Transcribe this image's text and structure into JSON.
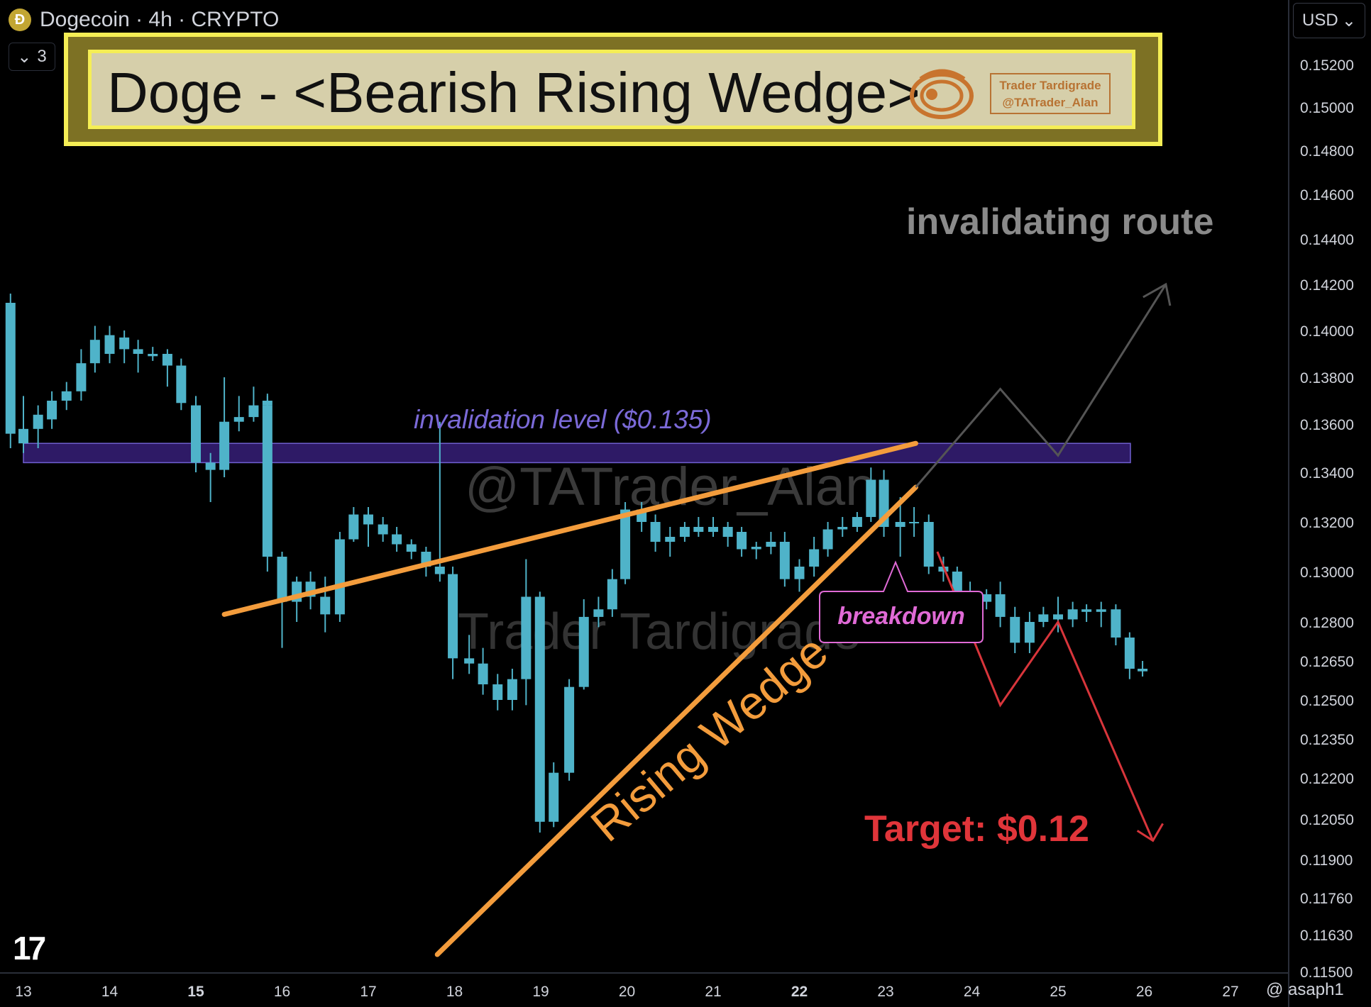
{
  "header": {
    "title": "Dogecoin · 4h · CRYPTO",
    "collapse_count": "3",
    "currency": "USD"
  },
  "banner": {
    "title": "Doge - <Bearish Rising Wedge>",
    "logo_line1": "Trader Tardigrade",
    "logo_line2": "@TATrader_Alan"
  },
  "footer": {
    "note": "@ asaph1"
  },
  "colors": {
    "bull": "#4fb3c9",
    "bear": "#4fb3c9",
    "wedge": "#f39c3c",
    "zone": "#2e1a66",
    "zone_border": "#6f5fd0",
    "invalid_path": "#555555",
    "target_path": "#d8353b",
    "breakdown": "#e06ad6"
  },
  "chart_data": {
    "type": "candlestick",
    "title": "Dogecoin · 4h · CRYPTO",
    "x_ticks": [
      {
        "t": 0,
        "label": "13",
        "bold": false
      },
      {
        "t": 1,
        "label": "14",
        "bold": false
      },
      {
        "t": 2,
        "label": "15",
        "bold": true
      },
      {
        "t": 3,
        "label": "16",
        "bold": false
      },
      {
        "t": 4,
        "label": "17",
        "bold": false
      },
      {
        "t": 5,
        "label": "18",
        "bold": false
      },
      {
        "t": 6,
        "label": "19",
        "bold": false
      },
      {
        "t": 7,
        "label": "20",
        "bold": false
      },
      {
        "t": 8,
        "label": "21",
        "bold": false
      },
      {
        "t": 9,
        "label": "22",
        "bold": true
      },
      {
        "t": 10,
        "label": "23",
        "bold": false
      },
      {
        "t": 11,
        "label": "24",
        "bold": false
      },
      {
        "t": 12,
        "label": "25",
        "bold": false
      },
      {
        "t": 13,
        "label": "26",
        "bold": false
      },
      {
        "t": 14,
        "label": "27",
        "bold": false
      }
    ],
    "y_ticks": [
      "0.15200",
      "0.15000",
      "0.14800",
      "0.14600",
      "0.14400",
      "0.14200",
      "0.14000",
      "0.13800",
      "0.13600",
      "0.13400",
      "0.13200",
      "0.13000",
      "0.12800",
      "0.12650",
      "0.12500",
      "0.12350",
      "0.12200",
      "0.12050",
      "0.11900",
      "0.11760",
      "0.11630",
      "0.11500"
    ],
    "annotations": {
      "invalidation_label": "invalidation level ($0.135)",
      "invalidating_route": "invalidating route",
      "breakdown": "breakdown",
      "target": "Target: $0.12",
      "pattern": "Rising Wedge",
      "watermark1": "@TATrader_Alan",
      "watermark2": "Trader Tardigrade"
    },
    "invalidation_zone": [
      0.1344,
      0.1352
    ],
    "wedge_upper": [
      [
        2.33,
        0.1283
      ],
      [
        10.35,
        0.1352
      ]
    ],
    "wedge_lower": [
      [
        4.8,
        0.1156
      ],
      [
        10.35,
        0.1334
      ]
    ],
    "invalid_path": [
      [
        10.35,
        0.1334
      ],
      [
        11.33,
        0.1375
      ],
      [
        12.0,
        0.1347
      ],
      [
        13.25,
        0.142
      ]
    ],
    "target_path": [
      [
        10.6,
        0.1308
      ],
      [
        11.33,
        0.1248
      ],
      [
        12.0,
        0.128
      ],
      [
        13.1,
        0.1197
      ]
    ],
    "candles": [
      {
        "t": -0.15,
        "o": 0.1356,
        "h": 0.1416,
        "l": 0.135,
        "c": 0.1412
      },
      {
        "t": 0.0,
        "o": 0.1352,
        "h": 0.1372,
        "l": 0.1348,
        "c": 0.1358
      },
      {
        "t": 0.17,
        "o": 0.1358,
        "h": 0.1368,
        "l": 0.135,
        "c": 0.1364
      },
      {
        "t": 0.33,
        "o": 0.1362,
        "h": 0.1374,
        "l": 0.1358,
        "c": 0.137
      },
      {
        "t": 0.5,
        "o": 0.137,
        "h": 0.1378,
        "l": 0.1366,
        "c": 0.1374
      },
      {
        "t": 0.67,
        "o": 0.1374,
        "h": 0.1392,
        "l": 0.137,
        "c": 0.1386
      },
      {
        "t": 0.83,
        "o": 0.1386,
        "h": 0.1402,
        "l": 0.1382,
        "c": 0.1396
      },
      {
        "t": 1.0,
        "o": 0.139,
        "h": 0.1402,
        "l": 0.1386,
        "c": 0.1398
      },
      {
        "t": 1.17,
        "o": 0.1397,
        "h": 0.14,
        "l": 0.1386,
        "c": 0.1392
      },
      {
        "t": 1.33,
        "o": 0.1392,
        "h": 0.1396,
        "l": 0.1382,
        "c": 0.139
      },
      {
        "t": 1.5,
        "o": 0.139,
        "h": 0.1393,
        "l": 0.1387,
        "c": 0.1389
      },
      {
        "t": 1.67,
        "o": 0.139,
        "h": 0.1392,
        "l": 0.1376,
        "c": 0.1385
      },
      {
        "t": 1.83,
        "o": 0.1385,
        "h": 0.1388,
        "l": 0.1366,
        "c": 0.1369
      },
      {
        "t": 2.0,
        "o": 0.1368,
        "h": 0.1372,
        "l": 0.1352,
        "c": 0.1355
      },
      {
        "t": 2.0,
        "o": 0.1355,
        "h": 0.1362,
        "l": 0.134,
        "c": 0.1344
      },
      {
        "t": 2.17,
        "o": 0.1344,
        "h": 0.1348,
        "l": 0.1328,
        "c": 0.1341
      },
      {
        "t": 2.33,
        "o": 0.1341,
        "h": 0.138,
        "l": 0.1338,
        "c": 0.1361
      },
      {
        "t": 2.5,
        "o": 0.1361,
        "h": 0.1372,
        "l": 0.1357,
        "c": 0.1363
      },
      {
        "t": 2.67,
        "o": 0.1363,
        "h": 0.1376,
        "l": 0.1361,
        "c": 0.1368
      },
      {
        "t": 2.83,
        "o": 0.1368,
        "h": 0.1373,
        "l": 0.1366,
        "c": 0.137
      },
      {
        "t": 2.83,
        "o": 0.1368,
        "h": 0.1372,
        "l": 0.13,
        "c": 0.1306
      },
      {
        "t": 3.0,
        "o": 0.1306,
        "h": 0.1308,
        "l": 0.127,
        "c": 0.1288
      },
      {
        "t": 3.17,
        "o": 0.1288,
        "h": 0.1298,
        "l": 0.128,
        "c": 0.1296
      },
      {
        "t": 3.33,
        "o": 0.1296,
        "h": 0.13,
        "l": 0.1285,
        "c": 0.129
      },
      {
        "t": 3.5,
        "o": 0.129,
        "h": 0.1298,
        "l": 0.1276,
        "c": 0.1283
      },
      {
        "t": 3.67,
        "o": 0.1283,
        "h": 0.1316,
        "l": 0.128,
        "c": 0.1313
      },
      {
        "t": 3.83,
        "o": 0.1313,
        "h": 0.1326,
        "l": 0.1312,
        "c": 0.1323
      },
      {
        "t": 4.0,
        "o": 0.1323,
        "h": 0.1326,
        "l": 0.131,
        "c": 0.1319
      },
      {
        "t": 4.17,
        "o": 0.1319,
        "h": 0.1322,
        "l": 0.1312,
        "c": 0.1315
      },
      {
        "t": 4.33,
        "o": 0.1315,
        "h": 0.1318,
        "l": 0.1308,
        "c": 0.1311
      },
      {
        "t": 4.5,
        "o": 0.1311,
        "h": 0.1313,
        "l": 0.1305,
        "c": 0.1308
      },
      {
        "t": 4.67,
        "o": 0.1308,
        "h": 0.131,
        "l": 0.1298,
        "c": 0.1302
      },
      {
        "t": 4.83,
        "o": 0.1302,
        "h": 0.1361,
        "l": 0.1296,
        "c": 0.1299
      },
      {
        "t": 4.98,
        "o": 0.1299,
        "h": 0.1302,
        "l": 0.1258,
        "c": 0.1266
      },
      {
        "t": 5.17,
        "o": 0.1266,
        "h": 0.1275,
        "l": 0.126,
        "c": 0.1264
      },
      {
        "t": 5.33,
        "o": 0.1264,
        "h": 0.127,
        "l": 0.1252,
        "c": 0.1256
      },
      {
        "t": 5.5,
        "o": 0.1256,
        "h": 0.126,
        "l": 0.1246,
        "c": 0.125
      },
      {
        "t": 5.67,
        "o": 0.125,
        "h": 0.1262,
        "l": 0.1246,
        "c": 0.1258
      },
      {
        "t": 5.83,
        "o": 0.1258,
        "h": 0.1305,
        "l": 0.1248,
        "c": 0.129
      },
      {
        "t": 5.99,
        "o": 0.129,
        "h": 0.1292,
        "l": 0.12,
        "c": 0.1204
      },
      {
        "t": 6.15,
        "o": 0.1204,
        "h": 0.1226,
        "l": 0.1202,
        "c": 0.1222
      },
      {
        "t": 6.33,
        "o": 0.1222,
        "h": 0.1258,
        "l": 0.1219,
        "c": 0.1255
      },
      {
        "t": 6.5,
        "o": 0.1255,
        "h": 0.1289,
        "l": 0.1254,
        "c": 0.1282
      },
      {
        "t": 6.67,
        "o": 0.1282,
        "h": 0.129,
        "l": 0.1278,
        "c": 0.1285
      },
      {
        "t": 6.83,
        "o": 0.1285,
        "h": 0.1301,
        "l": 0.1282,
        "c": 0.1297
      },
      {
        "t": 6.98,
        "o": 0.1297,
        "h": 0.1328,
        "l": 0.1295,
        "c": 0.1325
      },
      {
        "t": 7.17,
        "o": 0.1325,
        "h": 0.1328,
        "l": 0.1316,
        "c": 0.132
      },
      {
        "t": 7.33,
        "o": 0.132,
        "h": 0.1323,
        "l": 0.1308,
        "c": 0.1312
      },
      {
        "t": 7.5,
        "o": 0.1312,
        "h": 0.1318,
        "l": 0.1306,
        "c": 0.1314
      },
      {
        "t": 7.67,
        "o": 0.1314,
        "h": 0.132,
        "l": 0.1312,
        "c": 0.1318
      },
      {
        "t": 7.83,
        "o": 0.1318,
        "h": 0.1322,
        "l": 0.1314,
        "c": 0.1316
      },
      {
        "t": 8.0,
        "o": 0.1316,
        "h": 0.1322,
        "l": 0.1314,
        "c": 0.1318
      },
      {
        "t": 8.17,
        "o": 0.1318,
        "h": 0.132,
        "l": 0.131,
        "c": 0.1314
      },
      {
        "t": 8.33,
        "o": 0.1316,
        "h": 0.1318,
        "l": 0.1306,
        "c": 0.1309
      },
      {
        "t": 8.5,
        "o": 0.1309,
        "h": 0.1312,
        "l": 0.1305,
        "c": 0.131
      },
      {
        "t": 8.67,
        "o": 0.131,
        "h": 0.1316,
        "l": 0.1307,
        "c": 0.1312
      },
      {
        "t": 8.83,
        "o": 0.1312,
        "h": 0.1316,
        "l": 0.1294,
        "c": 0.1297
      },
      {
        "t": 9.0,
        "o": 0.1297,
        "h": 0.1305,
        "l": 0.1292,
        "c": 0.1302
      },
      {
        "t": 9.17,
        "o": 0.1302,
        "h": 0.1314,
        "l": 0.1298,
        "c": 0.1309
      },
      {
        "t": 9.33,
        "o": 0.1309,
        "h": 0.132,
        "l": 0.1306,
        "c": 0.1317
      },
      {
        "t": 9.5,
        "o": 0.1317,
        "h": 0.1322,
        "l": 0.1314,
        "c": 0.1318
      },
      {
        "t": 9.67,
        "o": 0.1318,
        "h": 0.1324,
        "l": 0.1316,
        "c": 0.1322
      },
      {
        "t": 9.83,
        "o": 0.1322,
        "h": 0.1342,
        "l": 0.132,
        "c": 0.1337
      },
      {
        "t": 9.98,
        "o": 0.1337,
        "h": 0.1341,
        "l": 0.1314,
        "c": 0.1318
      },
      {
        "t": 10.17,
        "o": 0.1318,
        "h": 0.133,
        "l": 0.1306,
        "c": 0.132
      },
      {
        "t": 10.33,
        "o": 0.132,
        "h": 0.1326,
        "l": 0.1314,
        "c": 0.132
      },
      {
        "t": 10.5,
        "o": 0.132,
        "h": 0.1323,
        "l": 0.1299,
        "c": 0.1302
      },
      {
        "t": 10.67,
        "o": 0.1302,
        "h": 0.1306,
        "l": 0.1296,
        "c": 0.13
      },
      {
        "t": 10.83,
        "o": 0.13,
        "h": 0.1302,
        "l": 0.1288,
        "c": 0.1291
      },
      {
        "t": 10.98,
        "o": 0.1291,
        "h": 0.1296,
        "l": 0.1284,
        "c": 0.1288
      },
      {
        "t": 11.17,
        "o": 0.1288,
        "h": 0.1293,
        "l": 0.1285,
        "c": 0.1291
      },
      {
        "t": 11.33,
        "o": 0.1291,
        "h": 0.1296,
        "l": 0.1278,
        "c": 0.1282
      },
      {
        "t": 11.5,
        "o": 0.1282,
        "h": 0.1286,
        "l": 0.1268,
        "c": 0.1272
      },
      {
        "t": 11.67,
        "o": 0.1272,
        "h": 0.1284,
        "l": 0.1268,
        "c": 0.128
      },
      {
        "t": 11.83,
        "o": 0.128,
        "h": 0.1286,
        "l": 0.1278,
        "c": 0.1283
      },
      {
        "t": 12.0,
        "o": 0.1283,
        "h": 0.129,
        "l": 0.1276,
        "c": 0.1281
      },
      {
        "t": 12.17,
        "o": 0.1281,
        "h": 0.1288,
        "l": 0.1278,
        "c": 0.1285
      },
      {
        "t": 12.33,
        "o": 0.1285,
        "h": 0.1287,
        "l": 0.128,
        "c": 0.1284
      },
      {
        "t": 12.5,
        "o": 0.1284,
        "h": 0.1288,
        "l": 0.1278,
        "c": 0.1285
      },
      {
        "t": 12.67,
        "o": 0.1285,
        "h": 0.1287,
        "l": 0.1271,
        "c": 0.1274
      },
      {
        "t": 12.83,
        "o": 0.1274,
        "h": 0.1276,
        "l": 0.1258,
        "c": 0.1262
      },
      {
        "t": 12.98,
        "o": 0.1262,
        "h": 0.1265,
        "l": 0.1259,
        "c": 0.1261
      }
    ]
  }
}
